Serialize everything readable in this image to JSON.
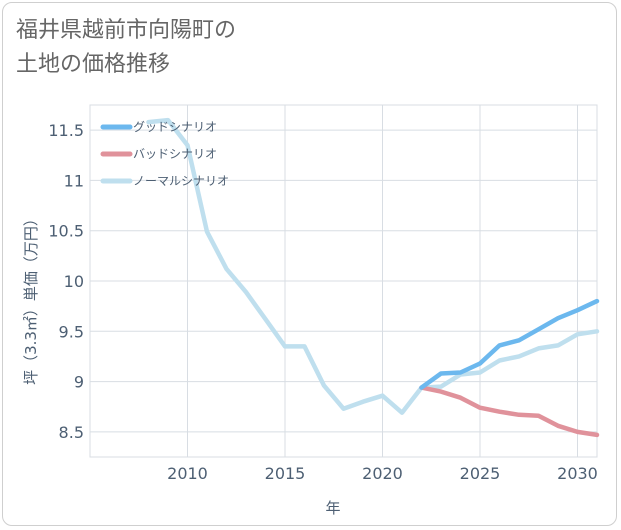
{
  "title": "福井県越前市向陽町の\n土地の価格推移",
  "chart_data": {
    "type": "line",
    "xlabel": "年",
    "ylabel": "坪（3.3㎡）単価（万円）",
    "xlim": [
      2005,
      2031
    ],
    "ylim": [
      8.25,
      11.75
    ],
    "x_ticks": [
      2010,
      2015,
      2020,
      2025,
      2030
    ],
    "y_ticks": [
      8.5,
      9,
      9.5,
      10,
      10.5,
      11,
      11.5
    ],
    "grid": true,
    "legend_position": "top-left",
    "series": [
      {
        "name": "グッドシナリオ",
        "color": "#6cb8ee",
        "x": [
          2022,
          2023,
          2024,
          2025,
          2026,
          2027,
          2028,
          2029,
          2030,
          2031
        ],
        "y": [
          8.94,
          9.08,
          9.09,
          9.18,
          9.36,
          9.41,
          9.52,
          9.63,
          9.71,
          9.8
        ]
      },
      {
        "name": "バッドシナリオ",
        "color": "#e0929b",
        "x": [
          2022,
          2023,
          2024,
          2025,
          2026,
          2027,
          2028,
          2029,
          2030,
          2031
        ],
        "y": [
          8.94,
          8.9,
          8.84,
          8.74,
          8.7,
          8.67,
          8.66,
          8.56,
          8.5,
          8.47
        ]
      },
      {
        "name": "ノーマルシナリオ",
        "color": "#bfdfee",
        "x": [
          2008,
          2009,
          2010,
          2011,
          2012,
          2013,
          2014,
          2015,
          2016,
          2017,
          2018,
          2019,
          2020,
          2021,
          2022,
          2023,
          2024,
          2025,
          2026,
          2027,
          2028,
          2029,
          2030,
          2031
        ],
        "y": [
          11.58,
          11.6,
          11.35,
          10.49,
          10.12,
          9.89,
          9.62,
          9.35,
          9.35,
          8.96,
          8.73,
          8.8,
          8.86,
          8.69,
          8.94,
          8.95,
          9.07,
          9.09,
          9.21,
          9.25,
          9.33,
          9.36,
          9.47,
          9.5
        ]
      }
    ]
  }
}
